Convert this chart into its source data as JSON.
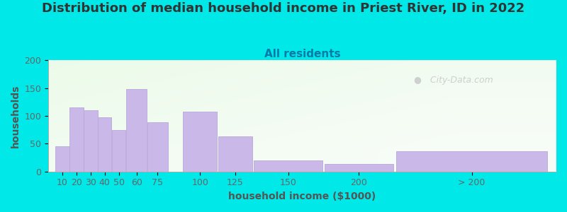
{
  "title": "Distribution of median household income in Priest River, ID in 2022",
  "subtitle": "All residents",
  "xlabel": "household income ($1000)",
  "ylabel": "households",
  "bar_labels": [
    "10",
    "20",
    "30",
    "40",
    "50",
    "60",
    "75",
    "100",
    "125",
    "150",
    "200",
    "> 200"
  ],
  "bar_values": [
    45,
    115,
    110,
    97,
    75,
    148,
    88,
    107,
    63,
    20,
    13,
    37
  ],
  "bar_color": "#c9b8e8",
  "bar_edgecolor": "#b8a8d8",
  "background_outer": "#00e8e8",
  "title_color": "#333333",
  "subtitle_color": "#007aaa",
  "axis_label_color": "#555555",
  "tick_label_color": "#666666",
  "ylim": [
    0,
    200
  ],
  "yticks": [
    0,
    50,
    100,
    150,
    200
  ],
  "title_fontsize": 13,
  "subtitle_fontsize": 11,
  "label_fontsize": 10,
  "tick_fontsize": 9,
  "watermark_text": "  City-Data.com",
  "watermark_color": "#c8c8c8",
  "bar_widths": [
    10,
    10,
    10,
    10,
    10,
    15,
    15,
    25,
    25,
    50,
    50,
    110
  ],
  "bar_lefts": [
    10,
    20,
    30,
    40,
    50,
    60,
    75,
    100,
    125,
    150,
    200,
    250
  ]
}
